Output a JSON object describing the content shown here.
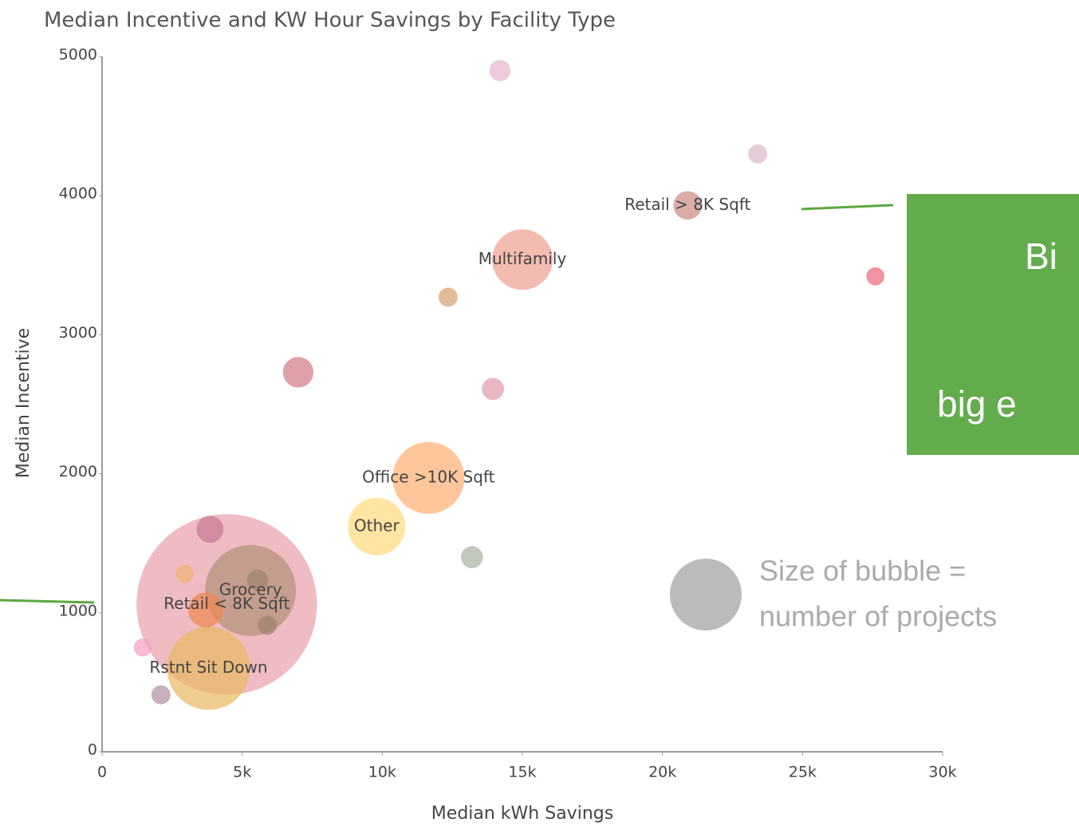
{
  "chart_data": {
    "type": "scatter",
    "title": "Median Incentive and KW Hour Savings by Facility Type",
    "x_label": "Median kWh Savings",
    "y_label": "Median Incentive",
    "x": [
      4450,
      5300,
      3800,
      11650,
      15000,
      9800,
      3700,
      7000,
      20900,
      3850,
      13950,
      13200,
      14200,
      5550,
      23400,
      12350,
      5900,
      2100,
      27600,
      2950,
      1450
    ],
    "values": [
      1060,
      1160,
      600,
      1970,
      3540,
      1620,
      1020,
      2730,
      3930,
      1600,
      2610,
      1400,
      4900,
      1234,
      4300,
      3270,
      910,
      410,
      3420,
      1280,
      750
    ],
    "sizes": [
      800,
      203,
      169,
      127,
      90,
      81,
      30,
      23,
      20,
      18,
      12,
      12,
      11,
      11,
      9,
      9,
      9,
      9,
      8,
      8,
      8
    ],
    "labels": [
      "Retail < 8K Sqft",
      "Grocery",
      "Rstnt Sit Down",
      "Office >10K Sqft",
      "Multifamily",
      "Other",
      null,
      null,
      "Retail > 8K Sqft",
      null,
      null,
      null,
      null,
      null,
      null,
      null,
      null,
      null,
      null,
      null,
      null
    ],
    "colors": [
      "#e8a0aa",
      "#b49078",
      "#e8b860",
      "#ffae70",
      "#eea090",
      "#ffd87a",
      "#ee8850",
      "#d07880",
      "#c98a80",
      "#c87890",
      "#e09aaa",
      "#a8b0a0",
      "#e8b4d0",
      "#a08070",
      "#d9b8c8",
      "#d4a070",
      "#a08070",
      "#b090a0",
      "#ee6677",
      "#f0b070",
      "#f4a0c0"
    ],
    "xlim": [
      0,
      30000
    ],
    "ylim": [
      0,
      5000
    ],
    "xticks": [
      {
        "value": 0,
        "label": "0"
      },
      {
        "value": 5000,
        "label": "5k"
      },
      {
        "value": 10000,
        "label": "10k"
      },
      {
        "value": 15000,
        "label": "15k"
      },
      {
        "value": 20000,
        "label": "20k"
      },
      {
        "value": 25000,
        "label": "25k"
      },
      {
        "value": 30000,
        "label": "30k"
      }
    ],
    "yticks": [
      0,
      1000,
      2000,
      3000,
      4000,
      5000
    ]
  },
  "annotations": {
    "box_text": [
      "Bi",
      "big e"
    ],
    "size_note": [
      "Size of bubble =",
      "number of projects"
    ]
  }
}
